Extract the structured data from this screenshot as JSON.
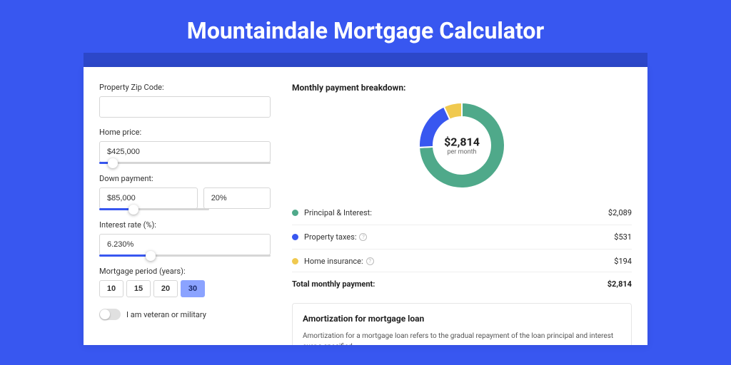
{
  "page": {
    "title": "Mountaindale Mortgage Calculator",
    "background_color": "#3857f0",
    "header_band_color": "#2c47c9",
    "card_background": "#ffffff"
  },
  "form": {
    "zip": {
      "label": "Property Zip Code:",
      "value": ""
    },
    "home_price": {
      "label": "Home price:",
      "value": "$425,000",
      "slider_pct": 8
    },
    "down_payment": {
      "label": "Down payment:",
      "amount": "$85,000",
      "percent": "20%",
      "slider_pct": 20
    },
    "interest_rate": {
      "label": "Interest rate (%):",
      "value": "6.230%",
      "slider_pct": 30
    },
    "period": {
      "label": "Mortgage period (years):",
      "options": [
        "10",
        "15",
        "20",
        "30"
      ],
      "selected": "30"
    },
    "veteran": {
      "label": "I am veteran or military",
      "on": false
    }
  },
  "breakdown": {
    "title": "Monthly payment breakdown:",
    "donut": {
      "amount": "$2,814",
      "sub": "per month",
      "slices": [
        {
          "label": "Principal & Interest",
          "value": 2089,
          "color": "#4fa98a",
          "display": "$2,089"
        },
        {
          "label": "Property taxes",
          "value": 531,
          "color": "#3857f0",
          "display": "$531",
          "info": true
        },
        {
          "label": "Home insurance",
          "value": 194,
          "color": "#f0c94f",
          "display": "$194",
          "info": true
        }
      ],
      "ring_width": 20
    },
    "total": {
      "label": "Total monthly payment:",
      "value": "$2,814"
    }
  },
  "amortization": {
    "title": "Amortization for mortgage loan",
    "text": "Amortization for a mortgage loan refers to the gradual repayment of the loan principal and interest over a specified"
  }
}
